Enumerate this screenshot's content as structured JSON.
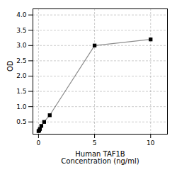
{
  "chart_data": {
    "type": "line",
    "x": [
      0,
      0.0625,
      0.125,
      0.25,
      0.5,
      1.0,
      5.0,
      10.0
    ],
    "values": [
      0.2,
      0.22,
      0.27,
      0.37,
      0.5,
      0.72,
      3.0,
      3.2
    ],
    "marker": "square",
    "xlabel": "Human TAF1B\nConcentration (ng/ml)",
    "ylabel": "OD",
    "xlim": [
      -0.5,
      11.5
    ],
    "ylim": [
      0.1,
      4.2
    ],
    "xticks": [
      0,
      5,
      10
    ],
    "yticks": [
      0.5,
      {
        "value": 1.0,
        "label": "1.0"
      },
      1.5,
      {
        "value": 2.0,
        "label": "2.0"
      },
      2.5,
      {
        "value": 3.0,
        "label": "3.0"
      },
      3.5,
      {
        "value": 4.0,
        "label": "4.0"
      }
    ],
    "grid": true
  }
}
